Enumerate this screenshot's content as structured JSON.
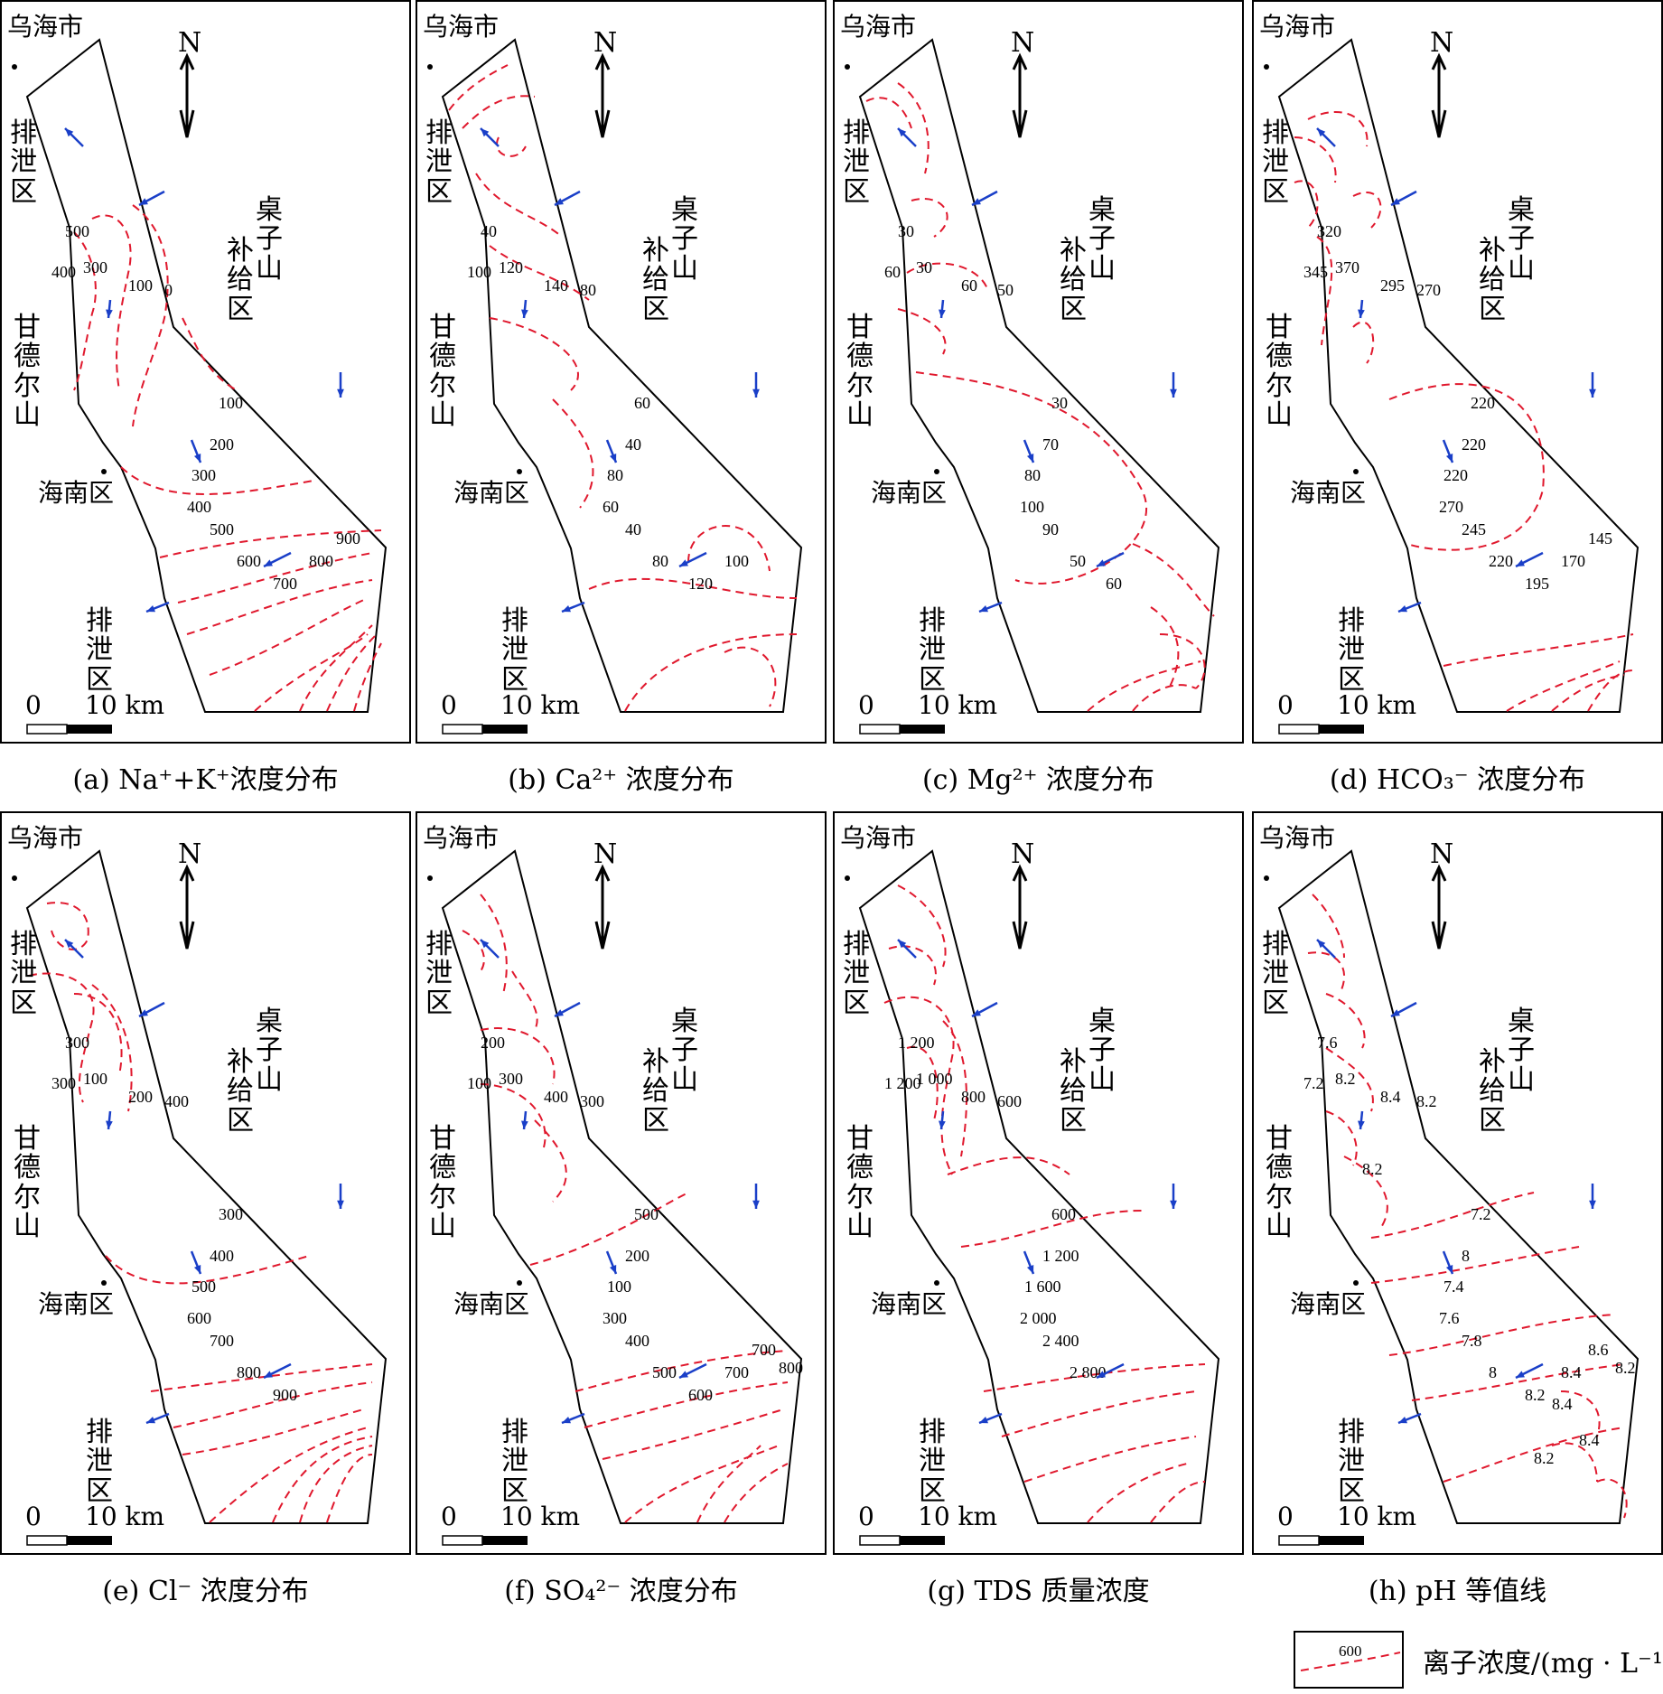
{
  "map_labels": {
    "city": "乌海市",
    "discharge_left": "排泄区",
    "mountain_west": "甘德尔山",
    "district": "海南区",
    "discharge_bottom": "排泄区",
    "recharge_1": "桌子山",
    "recharge_2": "补给区",
    "north": "N",
    "scale_zero": "0",
    "scale_dist": "10 km"
  },
  "panels": [
    {
      "id": "a",
      "caption": "(a) Na⁺+K⁺浓度分布",
      "contour_labels": [
        "500",
        "400",
        "300",
        "100",
        "0",
        "100",
        "200",
        "300",
        "400",
        "500",
        "600",
        "700",
        "800",
        "900"
      ]
    },
    {
      "id": "b",
      "caption": "(b) Ca²⁺ 浓度分布",
      "contour_labels": [
        "40",
        "100",
        "120",
        "140",
        "80",
        "60",
        "40",
        "80",
        "60",
        "40",
        "80",
        "120",
        "100"
      ]
    },
    {
      "id": "c",
      "caption": "(c) Mg²⁺ 浓度分布",
      "contour_labels": [
        "30",
        "60",
        "30",
        "60",
        "50",
        "30",
        "70",
        "80",
        "100",
        "90",
        "50",
        "60"
      ]
    },
    {
      "id": "d",
      "caption": "(d) HCO₃⁻ 浓度分布",
      "contour_labels": [
        "320",
        "345",
        "370",
        "295",
        "270",
        "220",
        "220",
        "220",
        "270",
        "245",
        "220",
        "195",
        "170",
        "145"
      ]
    },
    {
      "id": "e",
      "caption": "(e) Cl⁻ 浓度分布",
      "contour_labels": [
        "300",
        "300",
        "100",
        "200",
        "400",
        "300",
        "400",
        "500",
        "600",
        "700",
        "800",
        "900"
      ]
    },
    {
      "id": "f",
      "caption": "(f) SO₄²⁻ 浓度分布",
      "contour_labels": [
        "200",
        "100",
        "300",
        "400",
        "300",
        "500",
        "200",
        "100",
        "300",
        "400",
        "500",
        "600",
        "700",
        "700",
        "800"
      ]
    },
    {
      "id": "g",
      "caption": "(g) TDS 质量浓度",
      "contour_labels": [
        "1 200",
        "1 200",
        "1 000",
        "800",
        "600",
        "600",
        "1 200",
        "1 600",
        "2 000",
        "2 400",
        "2 800"
      ]
    },
    {
      "id": "h",
      "caption": "(h) pH 等值线",
      "contour_labels": [
        "7.6",
        "7.2",
        "8.2",
        "8.4",
        "8.2",
        "7.2",
        "8",
        "7.4",
        "7.6",
        "7.8",
        "8",
        "8.2",
        "8.4",
        "8.6",
        "8.2",
        "8.2",
        "8.4",
        "8.4",
        "8.2"
      ]
    }
  ],
  "legend": {
    "sample_value": "600",
    "text": "离子浓度/(mg · L⁻¹)"
  },
  "colors": {
    "contour": "#e0182d",
    "arrow": "#1a3fc8",
    "boundary": "#000000"
  }
}
